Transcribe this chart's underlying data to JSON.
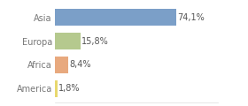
{
  "categories": [
    "Asia",
    "Europa",
    "Africa",
    "America"
  ],
  "values": [
    74.1,
    15.8,
    8.4,
    1.8
  ],
  "labels": [
    "74,1%",
    "15,8%",
    "8,4%",
    "1,8%"
  ],
  "bar_colors": [
    "#7b9fc8",
    "#b5c98e",
    "#e8a97e",
    "#e8d86e"
  ],
  "background_color": "#ffffff",
  "grid_color": "#dddddd",
  "xlim": [
    0,
    100
  ],
  "bar_height": 0.72,
  "label_fontsize": 7.0,
  "tick_fontsize": 7.0,
  "text_color": "#555555",
  "tick_color": "#777777"
}
